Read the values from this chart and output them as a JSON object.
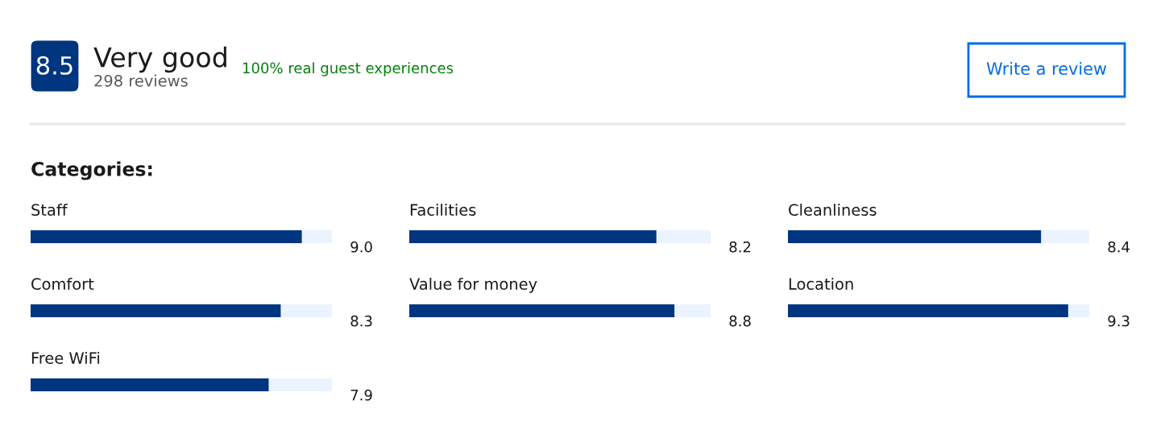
{
  "chart_data": [
    {
      "type": "other",
      "title": "Very good",
      "subtitle": "298 reviews",
      "annotations": [
        "8.5",
        "100% real guest experiences",
        "Write a review",
        "Categories:"
      ]
    },
    {
      "type": "bar",
      "orientation": "horizontal",
      "categories": [
        "Staff",
        "Comfort",
        "Free WiFi"
      ],
      "values": [
        9.0,
        8.3,
        7.9
      ],
      "value_labels": [
        "9.0",
        "8.3",
        "7.9"
      ],
      "color": "#003580",
      "xlim": [
        0,
        10
      ],
      "tick_labels": false
    },
    {
      "type": "bar",
      "orientation": "horizontal",
      "categories": [
        "Facilities",
        "Value for money"
      ],
      "values": [
        8.2,
        8.8
      ],
      "value_labels": [
        "8.2",
        "8.8"
      ],
      "color": "#003580",
      "xlim": [
        0,
        10
      ],
      "tick_labels": false
    },
    {
      "type": "bar",
      "orientation": "horizontal",
      "categories": [
        "Cleanliness",
        "Location"
      ],
      "values": [
        8.4,
        9.3
      ],
      "value_labels": [
        "8.4",
        "9.3"
      ],
      "color": "#003580",
      "xlim": [
        0,
        10
      ],
      "tick_labels": false
    }
  ]
}
